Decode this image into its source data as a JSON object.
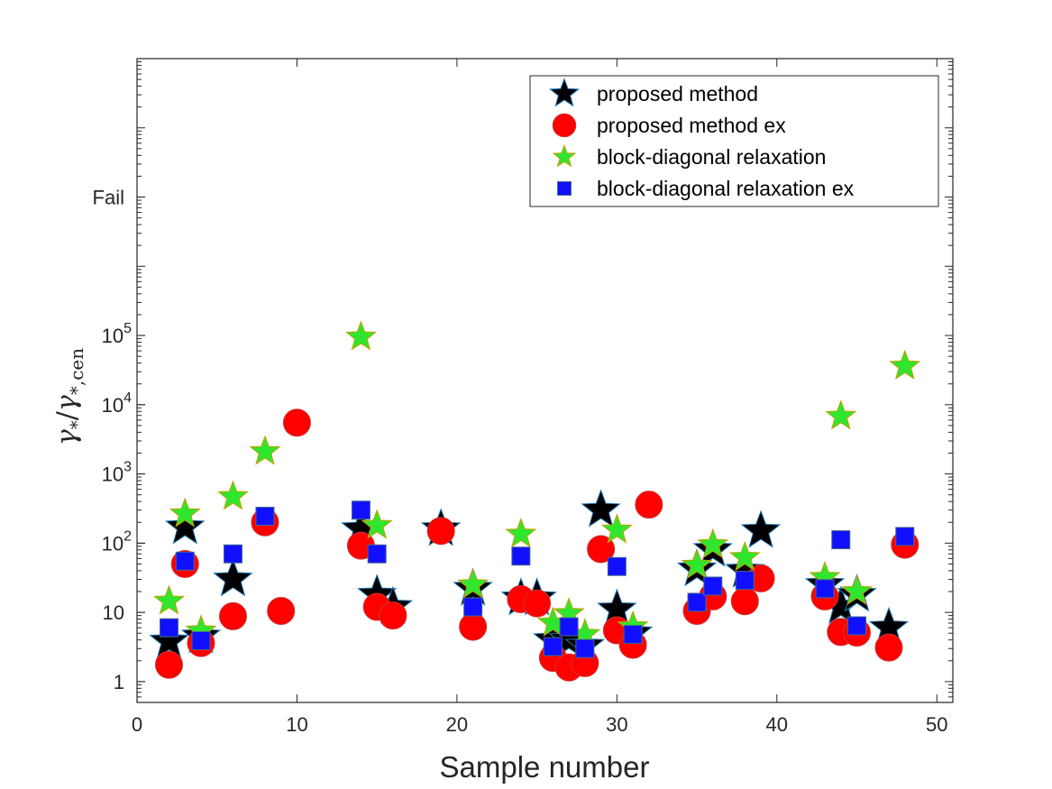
{
  "chart_data": {
    "type": "scatter",
    "xlabel": "Sample number",
    "ylabel": "γ*/γ*,cen",
    "ylabel_parts": {
      "num": "γ",
      "num_sub": "*",
      "den": "γ",
      "den_sub": "*,cen"
    },
    "xlim": [
      0,
      51
    ],
    "ylim": [
      0.5,
      1000000000
    ],
    "y_scale": "log",
    "x_ticks": [
      0,
      10,
      20,
      30,
      40,
      50
    ],
    "x_tick_labels": [
      "0",
      "10",
      "20",
      "30",
      "40",
      "50"
    ],
    "y_ticks": [
      1,
      10,
      100,
      1000,
      10000,
      100000,
      10000000
    ],
    "y_tick_labels": [
      {
        "base": "1",
        "exp": ""
      },
      {
        "base": "10",
        "exp": ""
      },
      {
        "base": "10",
        "exp": "2"
      },
      {
        "base": "10",
        "exp": "3"
      },
      {
        "base": "10",
        "exp": "4"
      },
      {
        "base": "10",
        "exp": "5"
      },
      {
        "base": "Fail",
        "exp": ""
      }
    ],
    "fail_value": 10000000,
    "grid": false,
    "legend_position": "top-right",
    "series": [
      {
        "name": "proposed method",
        "marker": "star",
        "color": "#000000",
        "edge": "#1f77b4",
        "points": [
          [
            2,
            3.8
          ],
          [
            3,
            170
          ],
          [
            4,
            4.5
          ],
          [
            6,
            30
          ],
          [
            14,
            160
          ],
          [
            15,
            18
          ],
          [
            16,
            12
          ],
          [
            19,
            160
          ],
          [
            21,
            22
          ],
          [
            24,
            16
          ],
          [
            25,
            16
          ],
          [
            26,
            4
          ],
          [
            27,
            4
          ],
          [
            28,
            3.3
          ],
          [
            29,
            300
          ],
          [
            30,
            11
          ],
          [
            31,
            5
          ],
          [
            35,
            42
          ],
          [
            36,
            80
          ],
          [
            38,
            40
          ],
          [
            39,
            150
          ],
          [
            43,
            25
          ],
          [
            44,
            12
          ],
          [
            45,
            18
          ],
          [
            47,
            6
          ]
        ]
      },
      {
        "name": "proposed method ex",
        "marker": "circle",
        "color": "#ff0000",
        "edge": "#cc3333",
        "points": [
          [
            2,
            1.75
          ],
          [
            3,
            50
          ],
          [
            4,
            3.6
          ],
          [
            6,
            8.8
          ],
          [
            8,
            200
          ],
          [
            9,
            10.5
          ],
          [
            10,
            5500
          ],
          [
            14,
            92
          ],
          [
            15,
            12
          ],
          [
            16,
            9
          ],
          [
            19,
            150
          ],
          [
            21,
            6.2
          ],
          [
            24,
            15.5
          ],
          [
            25,
            13.5
          ],
          [
            26,
            2.2
          ],
          [
            27,
            1.6
          ],
          [
            28,
            1.85
          ],
          [
            29,
            82
          ],
          [
            30,
            5.5
          ],
          [
            31,
            3.4
          ],
          [
            32,
            360
          ],
          [
            35,
            10.5
          ],
          [
            36,
            17
          ],
          [
            38,
            14.5
          ],
          [
            39,
            31
          ],
          [
            43,
            17
          ],
          [
            44,
            5.2
          ],
          [
            45,
            5.1
          ],
          [
            47,
            3.1
          ],
          [
            48,
            95
          ]
        ]
      },
      {
        "name": "block-diagonal relaxation",
        "marker": "star",
        "color": "#2ee62e",
        "edge": "#c8a000",
        "points": [
          [
            2,
            14.5
          ],
          [
            3,
            265
          ],
          [
            4,
            5.4
          ],
          [
            6,
            470
          ],
          [
            8,
            2100
          ],
          [
            14,
            95000
          ],
          [
            15,
            180
          ],
          [
            21,
            25
          ],
          [
            24,
            135
          ],
          [
            26,
            7
          ],
          [
            27,
            9.6
          ],
          [
            28,
            4.8
          ],
          [
            30,
            155
          ],
          [
            31,
            6.2
          ],
          [
            35,
            48
          ],
          [
            36,
            95
          ],
          [
            38,
            62
          ],
          [
            43,
            32
          ],
          [
            44,
            6800
          ],
          [
            45,
            20
          ],
          [
            48,
            36000
          ]
        ]
      },
      {
        "name": "block-diagonal relaxation ex",
        "marker": "square",
        "color": "#1010ff",
        "edge": "#4a6a8a",
        "points": [
          [
            2,
            6
          ],
          [
            3,
            55
          ],
          [
            4,
            3.9
          ],
          [
            6,
            70
          ],
          [
            8,
            245
          ],
          [
            14,
            300
          ],
          [
            15,
            70
          ],
          [
            21,
            12
          ],
          [
            24,
            65
          ],
          [
            26,
            3.2
          ],
          [
            27,
            6.2
          ],
          [
            28,
            3
          ],
          [
            30,
            46
          ],
          [
            31,
            4.8
          ],
          [
            35,
            14
          ],
          [
            36,
            24
          ],
          [
            38,
            29
          ],
          [
            43,
            22
          ],
          [
            44,
            112
          ],
          [
            45,
            6.4
          ],
          [
            48,
            125
          ]
        ]
      }
    ]
  }
}
